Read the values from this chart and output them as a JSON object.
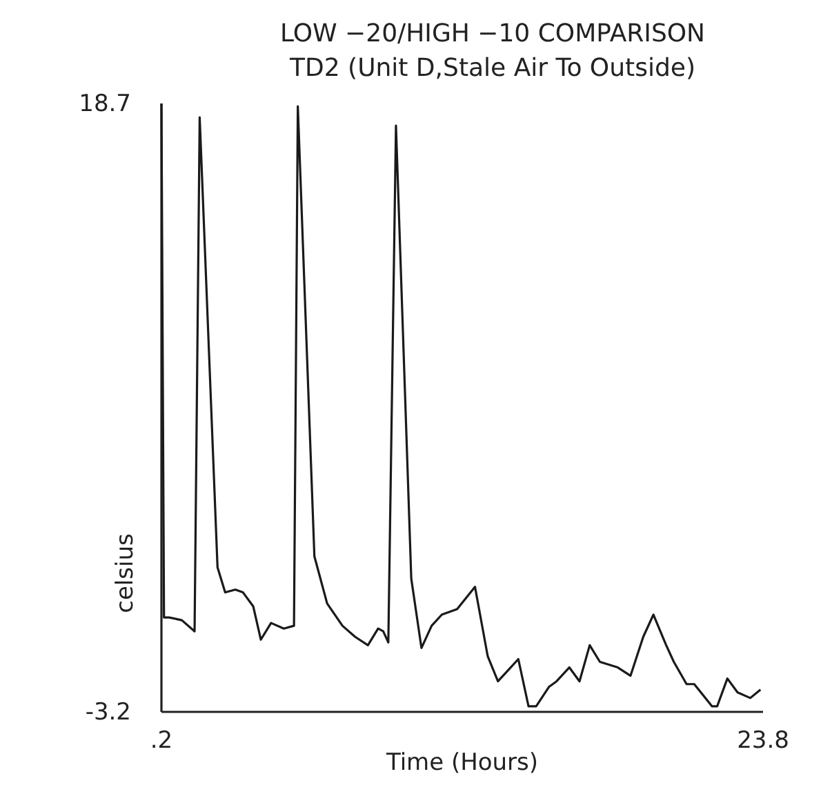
{
  "chart_data": {
    "type": "line",
    "title": "LOW −20/HIGH −10 COMPARISON",
    "subtitle": "TD2 (Unit D,Stale Air To Outside)",
    "xlabel": "Time (Hours)",
    "ylabel": "celsius",
    "xlim": [
      0.2,
      23.8
    ],
    "xticks": [
      {
        "value": 0.2,
        "label": ".2"
      },
      23.8
    ],
    "ylim": [
      -3.2,
      18.7
    ],
    "yticks": [
      18.7,
      -3.2
    ],
    "marker": "none",
    "line_style": "solid",
    "series": [
      {
        "color": "#1a1a1a",
        "x": [
          0.2,
          0.3,
          0.5,
          1.0,
          1.5,
          1.7,
          2.4,
          2.7,
          3.1,
          3.4,
          3.8,
          4.1,
          4.5,
          5.0,
          5.4,
          5.55,
          6.2,
          6.7,
          7.3,
          7.8,
          8.3,
          8.7,
          8.9,
          9.1,
          9.4,
          10.0,
          10.4,
          10.8,
          11.2,
          11.8,
          12.5,
          13.0,
          13.4,
          13.8,
          14.2,
          14.6,
          14.9,
          15.4,
          15.7,
          16.2,
          16.6,
          17.0,
          17.4,
          18.1,
          18.6,
          19.1,
          19.5,
          20.0,
          20.3,
          20.8,
          21.1,
          21.8,
          22.0,
          22.4,
          22.8,
          23.3,
          23.7
        ],
        "values": [
          18.7,
          0.2,
          0.2,
          0.1,
          -0.3,
          18.2,
          2.0,
          1.1,
          1.2,
          1.1,
          0.6,
          -0.6,
          0.0,
          -0.2,
          -0.1,
          18.6,
          2.4,
          0.7,
          -0.1,
          -0.5,
          -0.8,
          -0.2,
          -0.3,
          -0.7,
          17.9,
          1.6,
          -0.9,
          -0.1,
          0.3,
          0.5,
          1.3,
          -1.2,
          -2.1,
          -1.7,
          -1.3,
          -3.0,
          -3.0,
          -2.3,
          -2.1,
          -1.6,
          -2.1,
          -0.8,
          -1.4,
          -1.6,
          -1.9,
          -0.5,
          0.3,
          -0.8,
          -1.4,
          -2.2,
          -2.2,
          -3.0,
          -3.0,
          -2.0,
          -2.5,
          -2.7,
          -2.4
        ]
      }
    ]
  }
}
